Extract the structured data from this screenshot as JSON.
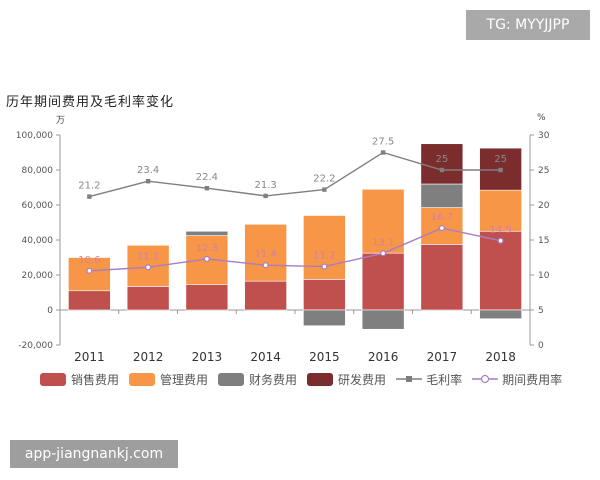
{
  "watermarks": {
    "top": "TG: MYYJJPP",
    "bottom": "app-jiangnankj.com"
  },
  "chart_data": {
    "type": "bar",
    "title": "历年期间费用及毛利率变化",
    "left_axis_unit": "万",
    "right_axis_unit": "%",
    "categories": [
      "2011",
      "2012",
      "2013",
      "2014",
      "2015",
      "2016",
      "2017",
      "2018"
    ],
    "ylim": [
      -20000,
      100000
    ],
    "y_ticks": [
      -20000,
      0,
      20000,
      40000,
      60000,
      80000,
      100000
    ],
    "y_tick_labels": [
      "-20,000",
      "0",
      "20,000",
      "40,000",
      "60,000",
      "80,000",
      "100,000"
    ],
    "y2lim": [
      0,
      30
    ],
    "y2_ticks": [
      0,
      5,
      10,
      15,
      20,
      25,
      30
    ],
    "y2_tick_labels": [
      "0",
      "5",
      "10",
      "15",
      "20",
      "25",
      "30"
    ],
    "series": [
      {
        "name": "销售费用",
        "kind": "bar",
        "color": "#c0504d",
        "values": [
          11000,
          13500,
          14500,
          16500,
          17500,
          32500,
          37500,
          45000
        ]
      },
      {
        "name": "管理费用",
        "kind": "bar",
        "color": "#f79646",
        "values": [
          19000,
          23500,
          28000,
          32500,
          36500,
          36500,
          21000,
          23500
        ]
      },
      {
        "name": "财务费用",
        "kind": "bar",
        "color": "#7f7f7f",
        "values": [
          0,
          0,
          2500,
          0,
          -9000,
          -11000,
          13500,
          -5000
        ]
      },
      {
        "name": "研发费用",
        "kind": "bar",
        "color": "#7b2c2c",
        "values": [
          0,
          0,
          0,
          0,
          0,
          0,
          23000,
          24000
        ]
      },
      {
        "name": "毛利率",
        "kind": "line",
        "axis": "right",
        "color": "#7f7f7f",
        "values": [
          21.2,
          23.4,
          22.4,
          21.3,
          22.2,
          27.5,
          25,
          25
        ],
        "labels": [
          "21.2",
          "23.4",
          "22.4",
          "21.3",
          "22.2",
          "27.5",
          "25",
          "25"
        ]
      },
      {
        "name": "期间费用率",
        "kind": "line",
        "axis": "right",
        "color": "#a97cc4",
        "values": [
          10.6,
          11.1,
          12.3,
          11.4,
          11.2,
          13.1,
          16.7,
          14.9
        ],
        "labels": [
          "10.6",
          "11.1",
          "12.3",
          "11.4",
          "11.2",
          "13.1",
          "16.7",
          "14.9"
        ]
      }
    ]
  }
}
